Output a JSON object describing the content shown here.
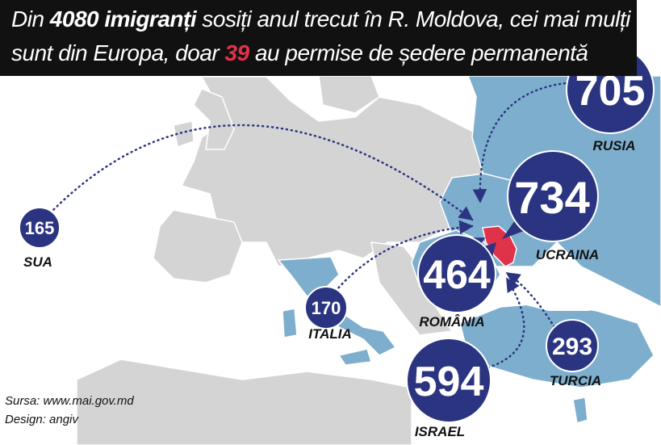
{
  "title": {
    "line1_pre": "Din ",
    "line1_bold": "4080 imigranți",
    "line1_post": " sosiți anul trecut în R. Moldova, cei mai mulți",
    "line2_pre": "sunt din Europa, doar ",
    "line2_bold": "39",
    "line2_post": " au permise de ședere permanentă"
  },
  "origins": [
    {
      "id": "sua",
      "label": "SUA",
      "value": "165"
    },
    {
      "id": "italia",
      "label": "ITALIA",
      "value": "170"
    },
    {
      "id": "romania",
      "label": "ROMÂNIA",
      "value": "464"
    },
    {
      "id": "israel",
      "label": "ISRAEL",
      "value": "594"
    },
    {
      "id": "turcia",
      "label": "TURCIA",
      "value": "293"
    },
    {
      "id": "ucraina",
      "label": "UCRAINA",
      "value": "734"
    },
    {
      "id": "rusia",
      "label": "RUSIA",
      "value": "705"
    }
  ],
  "credits": {
    "source": "Sursa: www.mai.gov.md",
    "design": "Design: angiv"
  },
  "colors": {
    "bubble": "#2b3480",
    "highlight_country": "#7eaecd",
    "land": "#d4d4d4",
    "border": "#ffffff",
    "moldova": "#e0334a",
    "title_band": "#111111",
    "title_accent": "#e0334a"
  }
}
